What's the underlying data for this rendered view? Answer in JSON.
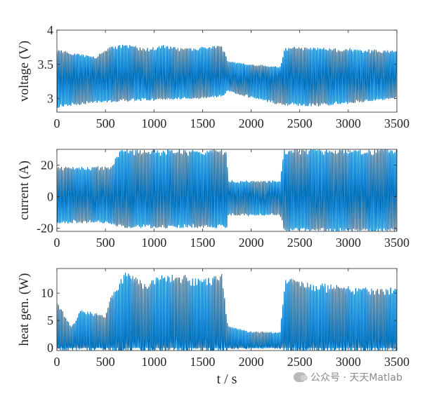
{
  "figure": {
    "xlabel": "t / s",
    "watermark": "公众号 · 天天Matlab"
  },
  "colors": {
    "series": "#0072BD",
    "axes": "#262626"
  },
  "chart_data": [
    {
      "type": "line",
      "ylabel": "voltage (V)",
      "xlim": [
        0,
        3500
      ],
      "ylim": [
        2.8,
        4.0
      ],
      "xticks": [
        0,
        500,
        1000,
        1500,
        2000,
        2500,
        3000,
        3500
      ],
      "yticks": [
        3,
        3.5,
        4
      ],
      "ytick_labels": [
        "3",
        "3.5",
        "4"
      ],
      "grid": false,
      "series": [
        {
          "values_description": "",
          "baseline": 3.3,
          "peak_envelope": [
            [
              0,
              3.72
            ],
            [
              200,
              3.66
            ],
            [
              400,
              3.62
            ],
            [
              550,
              3.76
            ],
            [
              700,
              3.8
            ],
            [
              900,
              3.74
            ],
            [
              1100,
              3.78
            ],
            [
              1300,
              3.74
            ],
            [
              1500,
              3.76
            ],
            [
              1700,
              3.78
            ],
            [
              1760,
              3.55
            ],
            [
              2000,
              3.5
            ],
            [
              2300,
              3.46
            ],
            [
              2350,
              3.76
            ],
            [
              2800,
              3.74
            ],
            [
              3200,
              3.72
            ],
            [
              3500,
              3.7
            ]
          ],
          "trough_envelope": [
            [
              0,
              2.86
            ],
            [
              200,
              2.9
            ],
            [
              500,
              2.94
            ],
            [
              800,
              2.96
            ],
            [
              1200,
              2.98
            ],
            [
              1700,
              3.02
            ],
            [
              1760,
              3.1
            ],
            [
              2000,
              3.0
            ],
            [
              2300,
              2.9
            ],
            [
              2600,
              2.88
            ],
            [
              3000,
              2.92
            ],
            [
              3500,
              3.0
            ]
          ]
        }
      ]
    },
    {
      "type": "line",
      "ylabel": "current (A)",
      "xlim": [
        0,
        3500
      ],
      "ylim": [
        -22,
        30
      ],
      "xticks": [
        0,
        500,
        1000,
        1500,
        2000,
        2500,
        3000,
        3500
      ],
      "yticks": [
        -20,
        0,
        20
      ],
      "ytick_labels": [
        "-20",
        "0",
        "20"
      ],
      "grid": false,
      "series": [
        {
          "baseline": 0,
          "peak_envelope": [
            [
              0,
              19
            ],
            [
              550,
              19
            ],
            [
              650,
              30
            ],
            [
              1750,
              30
            ],
            [
              1760,
              10
            ],
            [
              2300,
              10
            ],
            [
              2340,
              30
            ],
            [
              3500,
              30
            ]
          ],
          "trough_envelope": [
            [
              0,
              -17
            ],
            [
              550,
              -17
            ],
            [
              650,
              -20
            ],
            [
              1750,
              -20
            ],
            [
              1760,
              -12
            ],
            [
              2300,
              -12
            ],
            [
              2340,
              -22
            ],
            [
              3500,
              -22
            ]
          ]
        }
      ]
    },
    {
      "type": "line",
      "ylabel": "heat gen. (W)",
      "xlim": [
        0,
        3500
      ],
      "ylim": [
        -0.5,
        14.5
      ],
      "xticks": [
        0,
        500,
        1000,
        1500,
        2000,
        2500,
        3000,
        3500
      ],
      "yticks": [
        0,
        5,
        10
      ],
      "ytick_labels": [
        "0",
        "5",
        "10"
      ],
      "grid": false,
      "series": [
        {
          "baseline": 0.2,
          "peak_envelope": [
            [
              0,
              8.5
            ],
            [
              150,
              4
            ],
            [
              250,
              7
            ],
            [
              500,
              6
            ],
            [
              550,
              9
            ],
            [
              700,
              14.2
            ],
            [
              900,
              12
            ],
            [
              1100,
              13.5
            ],
            [
              1300,
              13.5
            ],
            [
              1500,
              12.5
            ],
            [
              1700,
              13.5
            ],
            [
              1760,
              4
            ],
            [
              2000,
              3
            ],
            [
              2300,
              3
            ],
            [
              2350,
              13
            ],
            [
              2600,
              12
            ],
            [
              2900,
              11.5
            ],
            [
              3200,
              11
            ],
            [
              3500,
              11
            ]
          ],
          "trough_envelope": [
            [
              0,
              0
            ],
            [
              3500,
              0
            ]
          ]
        }
      ]
    }
  ]
}
